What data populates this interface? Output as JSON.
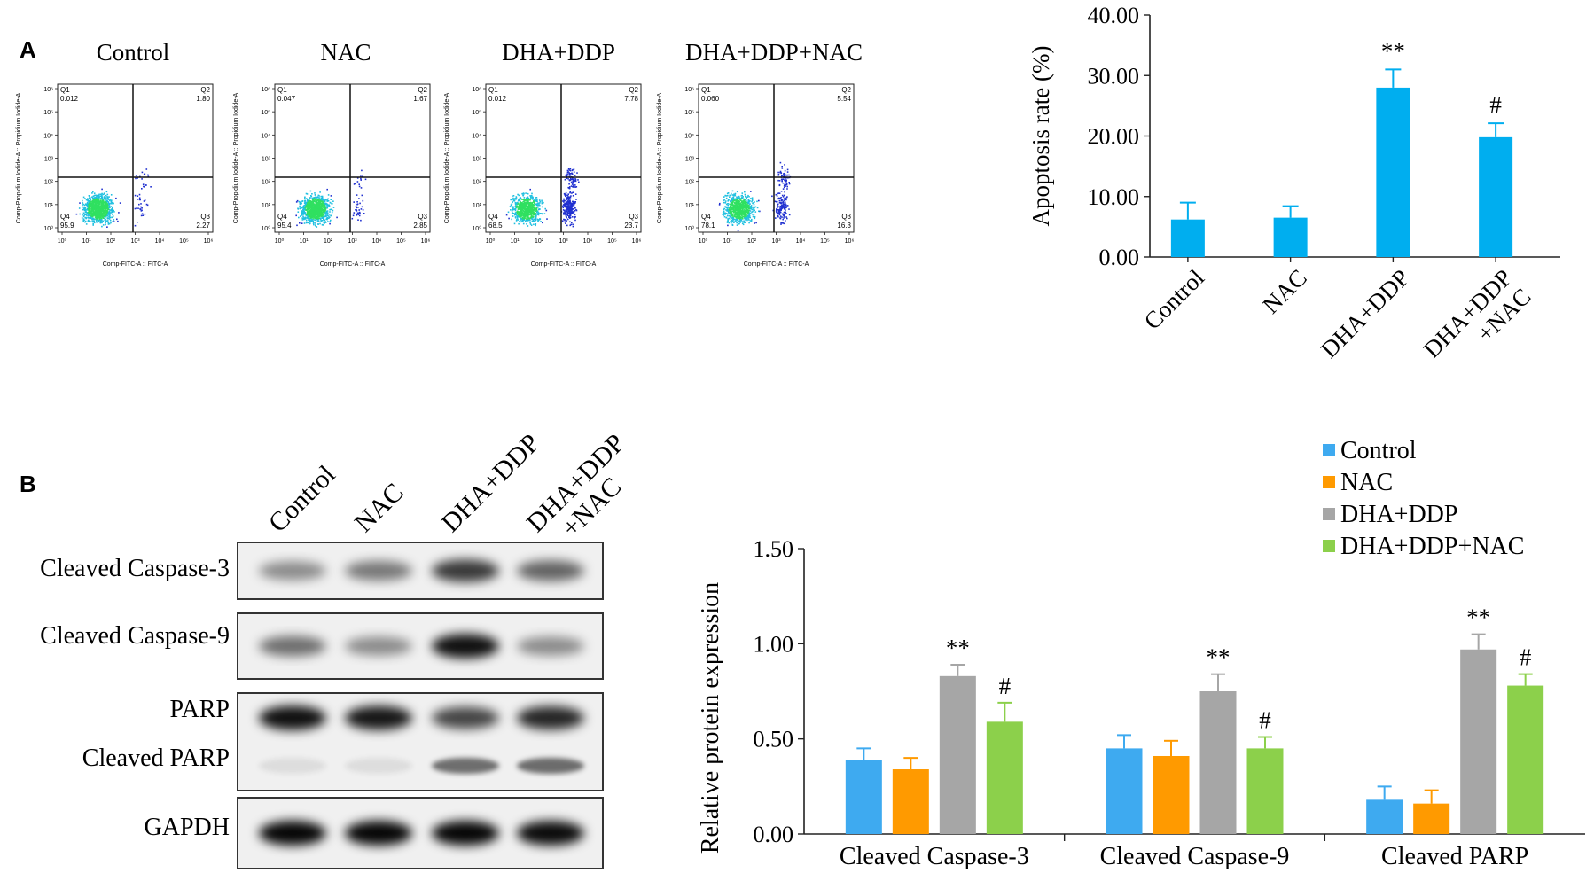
{
  "panel_labels": {
    "a": "A",
    "b": "B"
  },
  "colors": {
    "bar_a": "#00aeef",
    "control": "#3eaaf0",
    "nac": "#ff9a00",
    "dha_ddp": "#a6a6a6",
    "dha_ddp_nac": "#8cd04b",
    "dot_blue": "#2030d0",
    "dot_cyan": "#20c0e0",
    "dot_green": "#30e060"
  },
  "flow": {
    "panels": [
      {
        "title": "Control",
        "q1": "0.012",
        "q2": "1.80",
        "q3": "2.27",
        "q4": "95.9"
      },
      {
        "title": "NAC",
        "q1": "0.047",
        "q2": "1.67",
        "q3": "2.85",
        "q4": "95.4"
      },
      {
        "title": "DHA+DDP",
        "q1": "0.012",
        "q2": "7.78",
        "q3": "23.7",
        "q4": "68.5"
      },
      {
        "title": "DHA+DDP+NAC",
        "q1": "0.060",
        "q2": "5.54",
        "q3": "16.3",
        "q4": "78.1"
      }
    ],
    "quadrant_labels": {
      "q1": "Q1",
      "q2": "Q2",
      "q3": "Q3",
      "q4": "Q4"
    },
    "xlabel": "Comp-FITC-A :: FITC-A",
    "ylabel": "Comp-Propidium Iodide-A :: Propidium Iodide-A",
    "x_ticks": [
      "10⁰",
      "10¹",
      "10²",
      "10³",
      "10⁴",
      "10⁵",
      "10⁶"
    ],
    "y_ticks": [
      "10⁰",
      "10¹",
      "10²",
      "10³",
      "10⁴",
      "10⁵",
      "10⁶"
    ]
  },
  "blot": {
    "lanes": [
      "Control",
      "NAC",
      "DHA+DDP",
      "DHA+DDP\n+NAC"
    ],
    "rows": [
      {
        "labels": [
          "Cleaved Caspase-3"
        ],
        "intensity": [
          0.35,
          0.45,
          0.75,
          0.55
        ]
      },
      {
        "labels": [
          "Cleaved Caspase-9"
        ],
        "intensity": [
          0.5,
          0.35,
          0.95,
          0.35
        ]
      },
      {
        "labels": [
          "PARP",
          "Cleaved PARP"
        ],
        "intensity": [
          0.95,
          0.92,
          0.7,
          0.85
        ],
        "intensity2": [
          0.05,
          0.04,
          0.7,
          0.72
        ]
      },
      {
        "labels": [
          "GAPDH"
        ],
        "intensity": [
          1.0,
          1.0,
          1.0,
          0.98
        ]
      }
    ]
  },
  "chart_data": [
    {
      "type": "bar",
      "ylabel": "Apoptosis rate (%)",
      "ylim": [
        0,
        40
      ],
      "yticks": [
        "0.00",
        "10.00",
        "20.00",
        "30.00",
        "40.00"
      ],
      "categories": [
        "Control",
        "NAC",
        "DHA+DDP",
        "DHA+DDP\n+NAC"
      ],
      "values": [
        6.2,
        6.5,
        28.0,
        19.8
      ],
      "errors": [
        2.8,
        1.9,
        3.0,
        2.3
      ],
      "annotations": [
        "",
        "",
        "**",
        "#"
      ]
    },
    {
      "type": "bar",
      "ylabel": "Relative protein expression",
      "ylim": [
        0,
        1.5
      ],
      "yticks": [
        "0.00",
        "0.50",
        "1.00",
        "1.50"
      ],
      "categories": [
        "Cleaved Caspase-3",
        "Cleaved Caspase-9",
        "Cleaved PARP"
      ],
      "legend_position": "top-right",
      "series": [
        {
          "name": "Control",
          "values": [
            0.39,
            0.45,
            0.18
          ],
          "errors": [
            0.06,
            0.07,
            0.07
          ],
          "annotations": [
            "",
            "",
            ""
          ]
        },
        {
          "name": "NAC",
          "values": [
            0.34,
            0.41,
            0.16
          ],
          "errors": [
            0.06,
            0.08,
            0.07
          ],
          "annotations": [
            "",
            "",
            ""
          ]
        },
        {
          "name": "DHA+DDP",
          "values": [
            0.83,
            0.75,
            0.97
          ],
          "errors": [
            0.06,
            0.09,
            0.08
          ],
          "annotations": [
            "**",
            "**",
            "**"
          ]
        },
        {
          "name": "DHA+DDP+NAC",
          "values": [
            0.59,
            0.45,
            0.78
          ],
          "errors": [
            0.1,
            0.06,
            0.06
          ],
          "annotations": [
            "#",
            "#",
            "#"
          ]
        }
      ]
    }
  ]
}
